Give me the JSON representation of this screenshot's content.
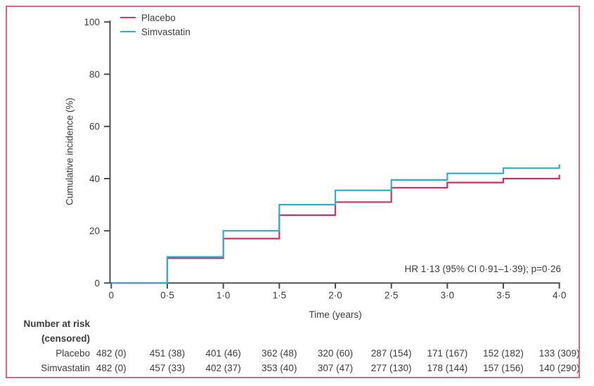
{
  "figure": {
    "frame_color": "#d96787",
    "background": "#ffffff",
    "text_color": "#3d3d3d",
    "axis_color": "#4d4d4d"
  },
  "chart_data": {
    "type": "line",
    "subtype": "step-function-cumulative-incidence",
    "title": "",
    "xlabel": "Time (years)",
    "ylabel": "Cumulative incidence (%)",
    "xlim": [
      0,
      4
    ],
    "ylim": [
      0,
      100
    ],
    "x_ticks": [
      "0",
      "0·5",
      "1·0",
      "1·5",
      "2·0",
      "2·5",
      "3·0",
      "3·5",
      "4·0"
    ],
    "x_tick_values": [
      0,
      0.5,
      1,
      1.5,
      2,
      2.5,
      3,
      3.5,
      4
    ],
    "y_ticks": [
      "0",
      "20",
      "40",
      "60",
      "80",
      "100"
    ],
    "y_tick_values": [
      0,
      20,
      40,
      60,
      80,
      100
    ],
    "grid": false,
    "legend_position": "top-left-inside",
    "step_mode": "value jumps at each x; plateau holds until next x",
    "annotation": "HR 1·13 (95% CI 0·91–1·39); p=0·26",
    "series": [
      {
        "name": "Placebo",
        "color": "#cb3365",
        "x": [
          0,
          0.5,
          1,
          1.5,
          2,
          2.5,
          3,
          3.5,
          4
        ],
        "y": [
          0,
          9.5,
          17,
          26,
          31,
          36.5,
          38.5,
          40,
          41.5
        ]
      },
      {
        "name": "Simvastatin",
        "color": "#33adcc",
        "x": [
          0,
          0.5,
          1,
          1.5,
          2,
          2.5,
          3,
          3.5,
          4
        ],
        "y": [
          0,
          10,
          20,
          30,
          35.5,
          39.5,
          42,
          44,
          45.5
        ]
      }
    ]
  },
  "risk_table": {
    "title": "Number at risk",
    "subtitle": "(censored)",
    "rows": [
      {
        "label": "Placebo",
        "values": [
          "482 (0)",
          "451 (38)",
          "401 (46)",
          "362 (48)",
          "320 (60)",
          "287 (154)",
          "171 (167)",
          "152 (182)",
          "133 (309)"
        ]
      },
      {
        "label": "Simvastatin",
        "values": [
          "482 (0)",
          "457 (33)",
          "402 (37)",
          "353 (40)",
          "307 (47)",
          "277 (130)",
          "178 (144)",
          "157 (156)",
          "140 (290)"
        ]
      }
    ]
  }
}
